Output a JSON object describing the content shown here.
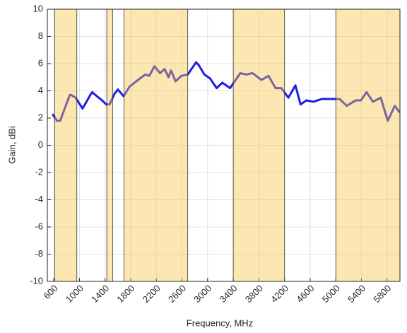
{
  "chart_data": {
    "type": "line",
    "xlabel": "Frequency, MHz",
    "ylabel": "Gain, dBi",
    "x": [
      580,
      650,
      700,
      850,
      870,
      940,
      1050,
      1170,
      1200,
      1300,
      1330,
      1420,
      1470,
      1550,
      1600,
      1690,
      1780,
      1860,
      1970,
      2030,
      2090,
      2170,
      2260,
      2330,
      2390,
      2430,
      2500,
      2590,
      2690,
      2820,
      2860,
      2950,
      3040,
      3140,
      3230,
      3350,
      3510,
      3600,
      3700,
      3840,
      3950,
      4060,
      4150,
      4260,
      4370,
      4450,
      4540,
      4650,
      4780,
      5060,
      5170,
      5310,
      5390,
      5480,
      5580,
      5700,
      5810,
      5920,
      5995
    ],
    "series": [
      {
        "name": "Gain",
        "color": "#1f1fe0",
        "values": [
          2.3,
          1.8,
          1.8,
          3.7,
          3.7,
          3.5,
          2.7,
          3.7,
          3.9,
          3.5,
          3.4,
          3.0,
          3.0,
          3.8,
          4.1,
          3.6,
          4.3,
          4.6,
          5.0,
          5.2,
          5.1,
          5.8,
          5.3,
          5.6,
          5.0,
          5.5,
          4.7,
          5.1,
          5.2,
          6.1,
          5.9,
          5.2,
          4.9,
          4.2,
          4.6,
          4.2,
          5.3,
          5.2,
          5.3,
          4.8,
          5.1,
          4.2,
          4.2,
          3.5,
          4.4,
          3.0,
          3.3,
          3.2,
          3.4,
          3.4,
          2.9,
          3.3,
          3.3,
          3.9,
          3.2,
          3.5,
          1.8,
          2.9,
          2.4
        ]
      }
    ],
    "shaded_regions": [
      [
        617,
        960
      ],
      [
        1427,
        1518
      ],
      [
        1695,
        2690
      ],
      [
        3400,
        4200
      ],
      [
        5000,
        6000
      ]
    ],
    "shade_color": "#f7c548",
    "xlim": [
      500,
      6000
    ],
    "ylim": [
      -10,
      10
    ],
    "xticks": [
      600,
      1000,
      1400,
      1800,
      2200,
      2600,
      3000,
      3400,
      3800,
      4200,
      4600,
      5000,
      5400,
      5800
    ],
    "yticks": [
      -10,
      -8,
      -6,
      -4,
      -2,
      0,
      2,
      4,
      6,
      8,
      10
    ],
    "grid": true
  }
}
